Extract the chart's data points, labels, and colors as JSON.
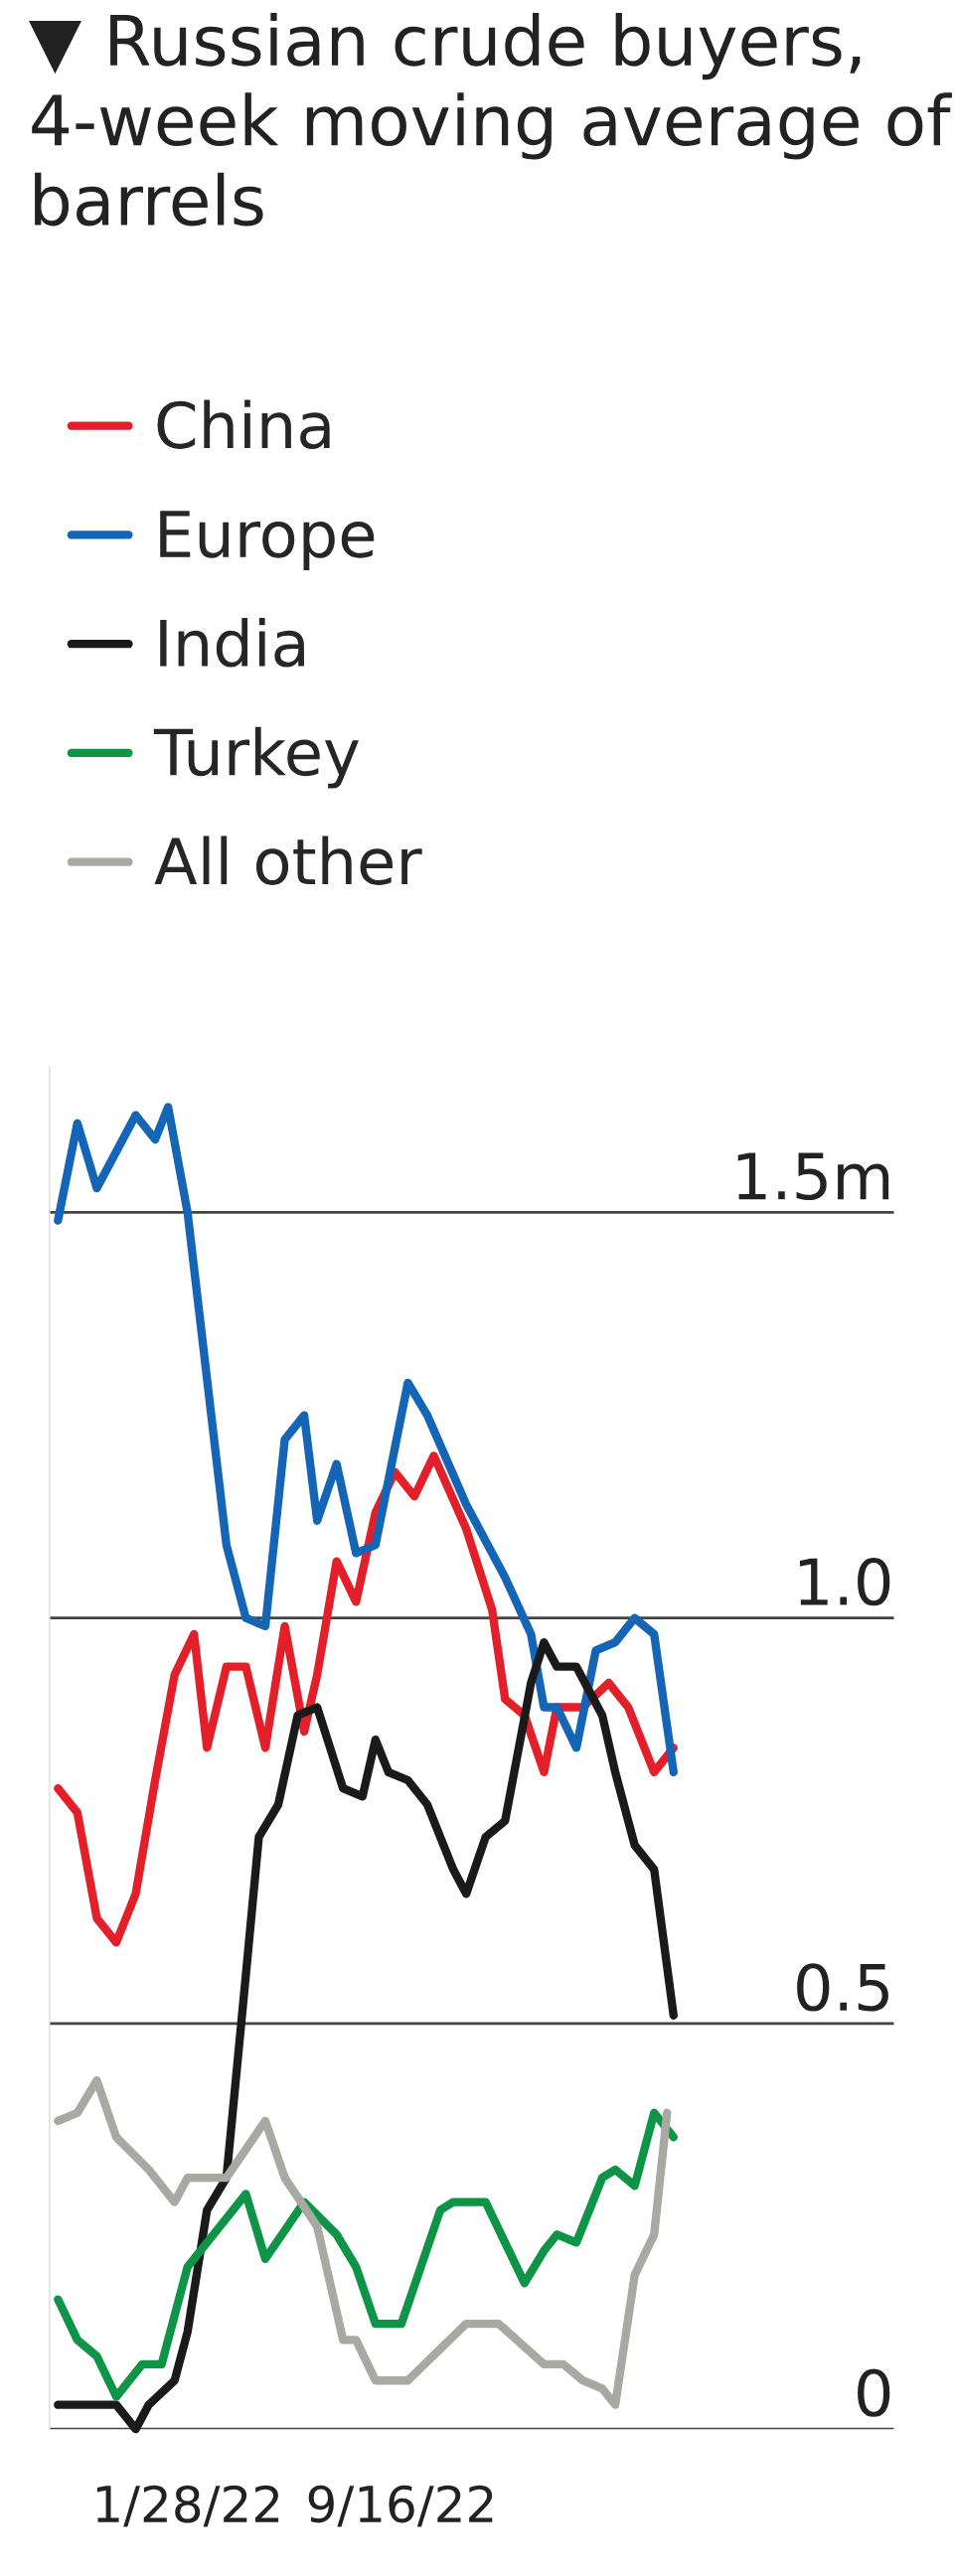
{
  "chart_data": {
    "type": "line",
    "title": "▼ Russian crude buyers, 4-week moving average of barrels",
    "legend": "top left",
    "grid": "y",
    "line_style": "solid",
    "marker": "none",
    "xlim": [
      "2021-09-01",
      "2024-03-01"
    ],
    "xticks": [
      {
        "value": "2022-01-28",
        "label": "1/28/22"
      },
      {
        "value": "2022-09-16",
        "label": "9/16/22"
      }
    ],
    "ylim": [
      0,
      1.68
    ],
    "yticks": [
      0,
      0.5,
      {
        "value": 1.0,
        "label": "1.0"
      },
      {
        "value": 1.5,
        "label": "1.5m"
      }
    ],
    "series": [
      {
        "name": "China",
        "color": "#e3202a",
        "x": [
          "2021-09-10",
          "2021-10-01",
          "2021-10-22",
          "2021-11-12",
          "2021-12-03",
          "2021-12-24",
          "2022-01-14",
          "2022-02-04",
          "2022-02-18",
          "2022-03-11",
          "2022-04-01",
          "2022-04-22",
          "2022-05-13",
          "2022-06-03",
          "2022-06-17",
          "2022-07-08",
          "2022-07-29",
          "2022-08-19",
          "2022-09-09",
          "2022-09-30",
          "2022-10-21",
          "2022-11-25",
          "2022-12-23",
          "2023-01-06",
          "2023-01-27",
          "2023-02-17",
          "2023-03-03",
          "2023-03-31",
          "2023-04-28",
          "2023-05-19",
          "2023-06-16",
          "2023-07-07"
        ],
        "values": [
          0.79,
          0.76,
          0.63,
          0.6,
          0.66,
          0.8,
          0.93,
          0.98,
          0.84,
          0.94,
          0.94,
          0.84,
          0.99,
          0.86,
          0.93,
          1.07,
          1.02,
          1.13,
          1.18,
          1.15,
          1.2,
          1.11,
          1.01,
          0.9,
          0.88,
          0.81,
          0.89,
          0.89,
          0.92,
          0.89,
          0.81,
          0.84
        ]
      },
      {
        "name": "Europe",
        "color": "#1565b7",
        "x": [
          "2021-09-10",
          "2021-10-01",
          "2021-10-22",
          "2021-12-03",
          "2021-12-24",
          "2022-01-07",
          "2022-01-28",
          "2022-03-11",
          "2022-04-01",
          "2022-04-22",
          "2022-05-13",
          "2022-06-03",
          "2022-06-17",
          "2022-07-08",
          "2022-07-29",
          "2022-08-19",
          "2022-09-23",
          "2022-10-14",
          "2022-11-25",
          "2023-01-06",
          "2023-02-03",
          "2023-02-17",
          "2023-03-03",
          "2023-03-24",
          "2023-04-14",
          "2023-05-05",
          "2023-05-26",
          "2023-06-16",
          "2023-07-07"
        ],
        "values": [
          1.49,
          1.61,
          1.53,
          1.62,
          1.59,
          1.63,
          1.5,
          1.09,
          1.0,
          0.99,
          1.22,
          1.25,
          1.12,
          1.19,
          1.08,
          1.09,
          1.29,
          1.25,
          1.14,
          1.05,
          0.98,
          0.89,
          0.89,
          0.84,
          0.96,
          0.97,
          1.0,
          0.98,
          0.81
        ]
      },
      {
        "name": "India",
        "color": "#1a1a1a",
        "x": [
          "2021-09-10",
          "2021-11-12",
          "2021-12-03",
          "2021-12-17",
          "2022-01-14",
          "2022-01-28",
          "2022-02-18",
          "2022-03-11",
          "2022-04-01",
          "2022-04-15",
          "2022-05-06",
          "2022-05-27",
          "2022-06-17",
          "2022-07-15",
          "2022-08-05",
          "2022-08-19",
          "2022-09-02",
          "2022-09-23",
          "2022-10-14",
          "2022-11-11",
          "2022-11-25",
          "2022-12-16",
          "2023-01-06",
          "2023-02-03",
          "2023-02-17",
          "2023-03-03",
          "2023-03-24",
          "2023-04-21",
          "2023-05-05",
          "2023-05-26",
          "2023-06-16",
          "2023-07-07"
        ],
        "values": [
          0.03,
          0.03,
          0.0,
          0.03,
          0.06,
          0.12,
          0.27,
          0.31,
          0.56,
          0.73,
          0.77,
          0.88,
          0.89,
          0.79,
          0.78,
          0.85,
          0.81,
          0.8,
          0.77,
          0.69,
          0.66,
          0.73,
          0.75,
          0.92,
          0.97,
          0.94,
          0.94,
          0.88,
          0.81,
          0.72,
          0.69,
          0.51
        ]
      },
      {
        "name": "Turkey",
        "color": "#0e9447",
        "x": [
          "2021-09-10",
          "2021-10-01",
          "2021-10-22",
          "2021-11-12",
          "2021-12-10",
          "2021-12-31",
          "2022-01-28",
          "2022-02-25",
          "2022-04-01",
          "2022-04-22",
          "2022-06-03",
          "2022-07-08",
          "2022-07-29",
          "2022-08-19",
          "2022-09-16",
          "2022-10-28",
          "2022-11-11",
          "2022-12-16",
          "2023-01-27",
          "2023-02-17",
          "2023-03-03",
          "2023-03-24",
          "2023-04-21",
          "2023-05-05",
          "2023-05-26",
          "2023-06-16",
          "2023-07-07"
        ],
        "values": [
          0.16,
          0.11,
          0.09,
          0.04,
          0.08,
          0.08,
          0.2,
          0.24,
          0.29,
          0.21,
          0.28,
          0.24,
          0.2,
          0.13,
          0.13,
          0.27,
          0.28,
          0.28,
          0.18,
          0.22,
          0.24,
          0.23,
          0.31,
          0.32,
          0.3,
          0.39,
          0.36
        ]
      },
      {
        "name": "All other",
        "color": "#a8a9a2",
        "x": [
          "2021-09-10",
          "2021-10-01",
          "2021-10-22",
          "2021-11-12",
          "2021-12-17",
          "2022-01-14",
          "2022-01-28",
          "2022-03-11",
          "2022-04-22",
          "2022-05-13",
          "2022-06-17",
          "2022-07-15",
          "2022-07-29",
          "2022-08-19",
          "2022-09-23",
          "2022-11-25",
          "2022-12-30",
          "2023-02-17",
          "2023-03-10",
          "2023-03-31",
          "2023-04-21",
          "2023-05-05",
          "2023-05-26",
          "2023-06-16",
          "2023-06-30"
        ],
        "values": [
          0.38,
          0.39,
          0.43,
          0.36,
          0.32,
          0.28,
          0.31,
          0.31,
          0.38,
          0.31,
          0.25,
          0.11,
          0.11,
          0.06,
          0.06,
          0.13,
          0.13,
          0.08,
          0.08,
          0.06,
          0.05,
          0.03,
          0.19,
          0.24,
          0.39
        ]
      }
    ]
  }
}
